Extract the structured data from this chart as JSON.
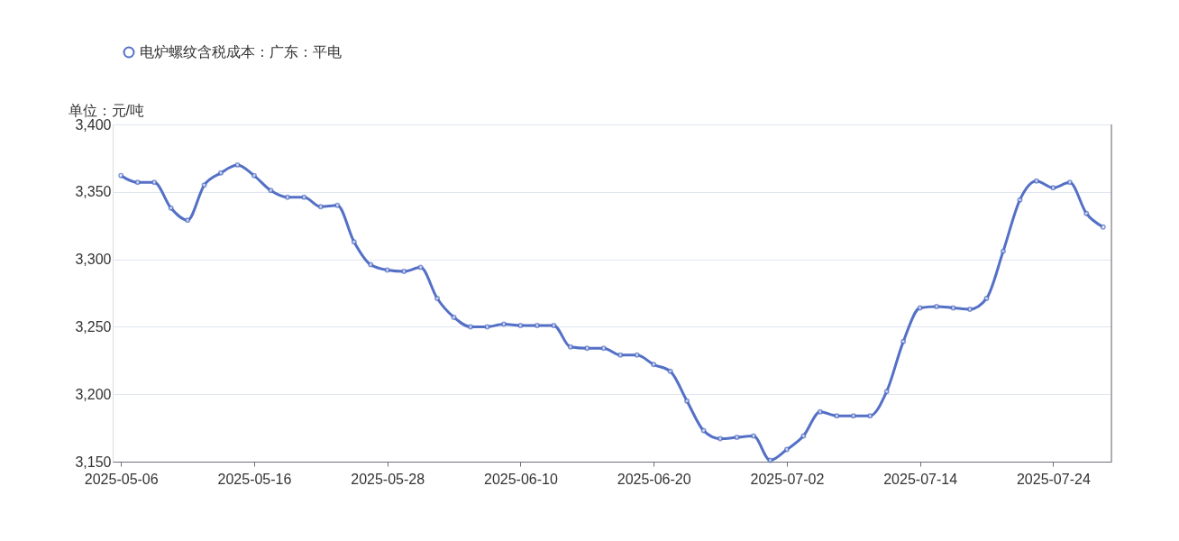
{
  "chart_data": {
    "type": "line",
    "ylabel": "单位：元/吨",
    "categories": [
      "2025-05-06",
      null,
      null,
      null,
      null,
      null,
      null,
      null,
      "2025-05-16",
      null,
      null,
      null,
      null,
      null,
      null,
      null,
      "2025-05-28",
      null,
      null,
      null,
      null,
      null,
      null,
      null,
      "2025-06-10",
      null,
      null,
      null,
      null,
      null,
      null,
      null,
      "2025-06-20",
      null,
      null,
      null,
      null,
      null,
      null,
      null,
      "2025-07-02",
      null,
      null,
      null,
      null,
      null,
      null,
      null,
      "2025-07-14",
      null,
      null,
      null,
      null,
      null,
      null,
      null,
      "2025-07-24",
      null,
      null,
      null
    ],
    "series": [
      {
        "name": "电炉螺纹含税成本：广东：平电",
        "color": "#5470c6",
        "values": [
          3362,
          3357,
          3357,
          3338,
          3329,
          3355,
          3364,
          3370,
          3362,
          3351,
          3346,
          3346,
          3339,
          3340,
          3313,
          3296,
          3292,
          3291,
          3294,
          3271,
          3257,
          3250,
          3250,
          3252,
          3251,
          3251,
          3251,
          3235,
          3234,
          3234,
          3229,
          3229,
          3222,
          3217,
          3195,
          3173,
          3167,
          3168,
          3169,
          3151,
          3159,
          3169,
          3187,
          3184,
          3184,
          3184,
          3202,
          3239,
          3264,
          3265,
          3264,
          3263,
          3271,
          3306,
          3344,
          3358,
          3353,
          3357,
          3334,
          3324
        ]
      }
    ],
    "ylim": [
      3150,
      3400
    ],
    "yticks": [
      {
        "value": 3150,
        "label": "3,150"
      },
      {
        "value": 3200,
        "label": "3,200"
      },
      {
        "value": 3250,
        "label": "3,250"
      },
      {
        "value": 3300,
        "label": "3,300"
      },
      {
        "value": 3350,
        "label": "3,350"
      },
      {
        "value": 3400,
        "label": "3,400"
      }
    ],
    "grid": "y",
    "legend": "top",
    "marker": "circle",
    "line_style": "solid"
  }
}
